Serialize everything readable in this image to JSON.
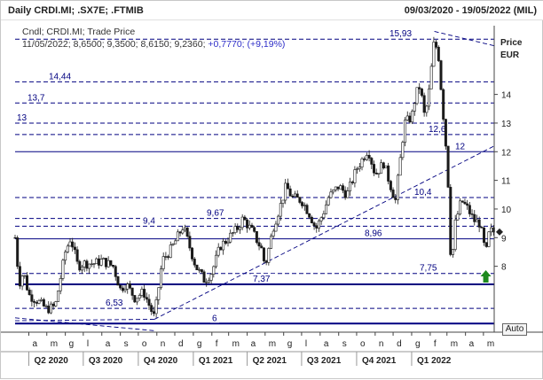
{
  "header": {
    "title": "Daily CRDI.MI; .SX7E; .FTMIB",
    "date_range": "09/03/2020 - 19/05/2022 (MIL)"
  },
  "legend": {
    "line1": "Cndl; CRDI.MI; Trade Price",
    "ohlc": "11/05/2022; 8,6500; 9,3500; 8,6150; 9,2360;",
    "change": "+0,7770; (+9,19%)"
  },
  "axis": {
    "title": "Price",
    "unit": "EUR",
    "y_ticks": [
      "8",
      "9",
      "10",
      "11",
      "12",
      "13",
      "14"
    ],
    "x_ticks": [
      "a",
      "m",
      "g",
      "l",
      "a",
      "s",
      "o",
      "n",
      "d",
      "g",
      "f",
      "m",
      "a",
      "m",
      "g",
      "l",
      "a",
      "s",
      "o",
      "n",
      "d",
      "g",
      "f",
      "m",
      "a",
      "m"
    ],
    "quarters": [
      "Q2 2020",
      "Q3 2020",
      "Q4 2020",
      "Q1 2021",
      "Q2 2021",
      "Q3 2021",
      "Q4 2021",
      "Q1 2022"
    ]
  },
  "controls": {
    "auto_label": "Auto"
  },
  "colors": {
    "candle": "#1a1a1a",
    "level_line": "#000080",
    "trendline": "#000080",
    "up_arrow": "#1e8a1e",
    "grid": "#d0d0d0"
  },
  "chart_data": {
    "type": "candlestick",
    "title": "Daily CRDI.MI",
    "ylabel": "Price EUR",
    "ylim": [
      5.7,
      16.4
    ],
    "x_range": [
      "2020-03-09",
      "2022-05-19"
    ],
    "series": [
      {
        "name": "CRDI.MI",
        "points": [
          [
            "2020-03-09",
            9.0
          ],
          [
            "2020-03-16",
            7.4
          ],
          [
            "2020-03-23",
            7.8
          ],
          [
            "2020-04-01",
            7.0
          ],
          [
            "2020-04-15",
            6.8
          ],
          [
            "2020-05-01",
            6.5
          ],
          [
            "2020-05-15",
            6.6
          ],
          [
            "2020-06-01",
            8.5
          ],
          [
            "2020-06-10",
            9.0
          ],
          [
            "2020-06-22",
            8.0
          ],
          [
            "2020-07-01",
            8.1
          ],
          [
            "2020-07-20",
            8.1
          ],
          [
            "2020-08-01",
            8.2
          ],
          [
            "2020-08-20",
            8.0
          ],
          [
            "2020-09-01",
            7.2
          ],
          [
            "2020-09-10",
            7.4
          ],
          [
            "2020-09-25",
            6.9
          ],
          [
            "2020-10-10",
            7.1
          ],
          [
            "2020-10-28",
            6.2
          ],
          [
            "2020-11-10",
            8.2
          ],
          [
            "2020-11-25",
            8.6
          ],
          [
            "2020-12-10",
            9.2
          ],
          [
            "2020-12-15",
            9.4
          ],
          [
            "2021-01-05",
            8.0
          ],
          [
            "2021-01-20",
            7.5
          ],
          [
            "2021-02-01",
            7.8
          ],
          [
            "2021-02-15",
            8.7
          ],
          [
            "2021-02-25",
            8.9
          ],
          [
            "2021-03-15",
            9.3
          ],
          [
            "2021-03-25",
            9.67
          ],
          [
            "2021-04-10",
            9.2
          ],
          [
            "2021-04-25",
            8.6
          ],
          [
            "2021-05-01",
            8.0
          ],
          [
            "2021-05-15",
            9.4
          ],
          [
            "2021-05-28",
            10.2
          ],
          [
            "2021-06-05",
            10.8
          ],
          [
            "2021-06-15",
            10.4
          ],
          [
            "2021-07-01",
            10.3
          ],
          [
            "2021-07-15",
            9.8
          ],
          [
            "2021-07-25",
            9.3
          ],
          [
            "2021-08-05",
            9.8
          ],
          [
            "2021-08-15",
            10.4
          ],
          [
            "2021-09-01",
            10.8
          ],
          [
            "2021-09-15",
            10.5
          ],
          [
            "2021-10-01",
            11.4
          ],
          [
            "2021-10-15",
            11.9
          ],
          [
            "2021-10-20",
            12.1
          ],
          [
            "2021-11-01",
            11.2
          ],
          [
            "2021-11-15",
            11.6
          ],
          [
            "2021-11-30",
            10.6
          ],
          [
            "2021-12-05",
            10.3
          ],
          [
            "2021-12-10",
            11.2
          ],
          [
            "2021-12-20",
            13.0
          ],
          [
            "2022-01-01",
            13.2
          ],
          [
            "2022-01-08",
            14.0
          ],
          [
            "2022-01-15",
            14.3
          ],
          [
            "2022-01-22",
            13.3
          ],
          [
            "2022-01-28",
            13.7
          ],
          [
            "2022-02-08",
            15.93
          ],
          [
            "2022-02-15",
            15.3
          ],
          [
            "2022-02-20",
            14.0
          ],
          [
            "2022-02-28",
            12.0
          ],
          [
            "2022-03-04",
            10.5
          ],
          [
            "2022-03-08",
            7.9
          ],
          [
            "2022-03-15",
            9.5
          ],
          [
            "2022-03-25",
            10.3
          ],
          [
            "2022-04-05",
            10.0
          ],
          [
            "2022-04-15",
            9.6
          ],
          [
            "2022-04-25",
            9.5
          ],
          [
            "2022-05-05",
            8.4
          ],
          [
            "2022-05-11",
            9.236
          ],
          [
            "2022-05-19",
            9.2
          ]
        ]
      }
    ],
    "levels": [
      {
        "value": 15.93,
        "label": "15,93"
      },
      {
        "value": 14.44,
        "label": "14,44"
      },
      {
        "value": 13.7,
        "label": "13,7"
      },
      {
        "value": 13.0,
        "label": "13"
      },
      {
        "value": 12.6,
        "label": "12,6"
      },
      {
        "value": 12.0,
        "label": "12"
      },
      {
        "value": 10.4,
        "label": "10,4"
      },
      {
        "value": 9.67,
        "label": "9,67"
      },
      {
        "value": 9.4,
        "label": "9,4"
      },
      {
        "value": 8.96,
        "label": "8,96"
      },
      {
        "value": 7.75,
        "label": "7,75"
      },
      {
        "value": 7.37,
        "label": "7,37"
      },
      {
        "value": 6.53,
        "label": "6,53"
      },
      {
        "value": 6.0,
        "label": "6"
      }
    ]
  }
}
